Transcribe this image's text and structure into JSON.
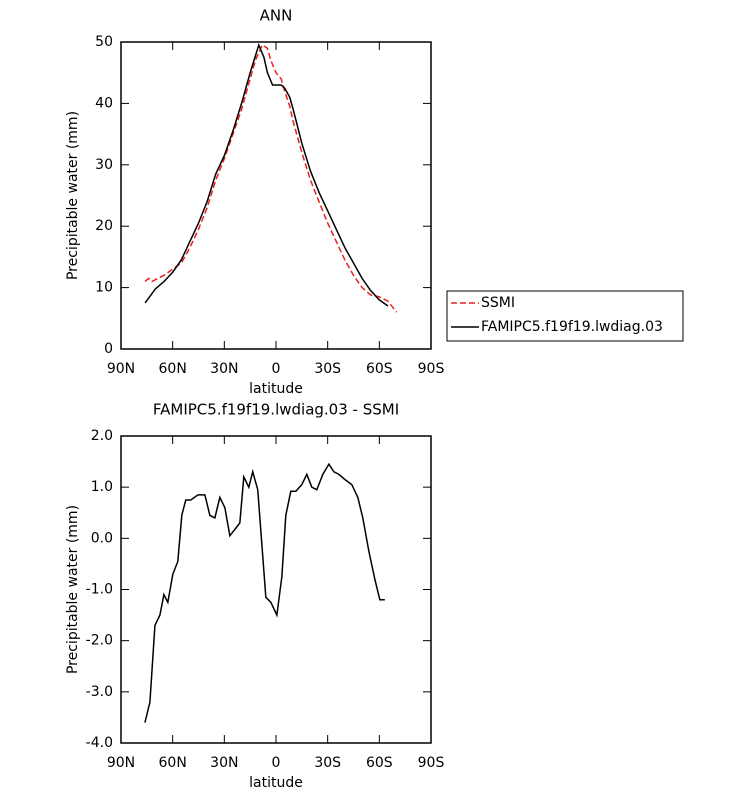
{
  "chart_data": [
    {
      "type": "line",
      "title": "ANN",
      "xlabel": "latitude",
      "ylabel": "Precipitable water (mm)",
      "xlim": [
        90,
        -90
      ],
      "xticks": [
        {
          "value": 90,
          "label": "90N"
        },
        {
          "value": 60,
          "label": "60N"
        },
        {
          "value": 30,
          "label": "30N"
        },
        {
          "value": 0,
          "label": "0"
        },
        {
          "value": -30,
          "label": "30S"
        },
        {
          "value": -60,
          "label": "60S"
        },
        {
          "value": -90,
          "label": "90S"
        }
      ],
      "ylim": [
        0,
        50
      ],
      "yticks": [
        0,
        10,
        20,
        30,
        40,
        50
      ],
      "legend": "right",
      "series": [
        {
          "name": "SSMI",
          "color": "#e8211c",
          "dash": "dashed",
          "x": [
            76,
            74,
            72,
            65,
            60,
            55,
            50,
            45,
            40,
            35,
            30,
            25,
            20,
            15,
            12,
            8,
            5,
            3,
            0,
            -3,
            -5,
            -8,
            -10,
            -15,
            -20,
            -25,
            -30,
            -35,
            -40,
            -45,
            -50,
            -55,
            -60,
            -65,
            -70
          ],
          "values": [
            11,
            11.5,
            11,
            12,
            13,
            14,
            16.5,
            19.5,
            23,
            27.5,
            31,
            35,
            39,
            44,
            47,
            49.5,
            49,
            47,
            45,
            44,
            42,
            39.5,
            37,
            32,
            27.5,
            24,
            20.5,
            17.5,
            14.5,
            12,
            10,
            8.8,
            8.5,
            7.8,
            6
          ]
        },
        {
          "name": "FAMIPC5.f19f19.lwdiag.03",
          "color": "#000000",
          "dash": "solid",
          "x": [
            76,
            70,
            65,
            60,
            55,
            50,
            45,
            40,
            35,
            30,
            25,
            20,
            15,
            10,
            7,
            5,
            2,
            0,
            -3,
            -5,
            -8,
            -10,
            -15,
            -20,
            -25,
            -30,
            -35,
            -40,
            -45,
            -50,
            -55,
            -60,
            -65
          ],
          "values": [
            7.5,
            9.8,
            11,
            12.5,
            14.5,
            17.5,
            20.5,
            24,
            28.5,
            31.5,
            35.5,
            40,
            45,
            49.5,
            47.5,
            45,
            43,
            43,
            43,
            42.5,
            41,
            39,
            33.5,
            29,
            25.5,
            22.5,
            19.5,
            16.5,
            14,
            11.5,
            9.5,
            8,
            7
          ]
        }
      ]
    },
    {
      "type": "line",
      "title": "FAMIPC5.f19f19.lwdiag.03 - SSMI",
      "xlabel": "latitude",
      "ylabel": "Precipitable water (mm)",
      "xlim": [
        90,
        -90
      ],
      "xticks": [
        {
          "value": 90,
          "label": "90N"
        },
        {
          "value": 60,
          "label": "60N"
        },
        {
          "value": 30,
          "label": "30N"
        },
        {
          "value": 0,
          "label": "0"
        },
        {
          "value": -30,
          "label": "30S"
        },
        {
          "value": -60,
          "label": "60S"
        },
        {
          "value": -90,
          "label": "90S"
        }
      ],
      "ylim": [
        -4,
        2
      ],
      "yticks": [
        {
          "value": -4,
          "label": "-4.0"
        },
        {
          "value": -3,
          "label": "-3.0"
        },
        {
          "value": -2,
          "label": "-2.0"
        },
        {
          "value": -1,
          "label": "-1.0"
        },
        {
          "value": 0,
          "label": "0.0"
        },
        {
          "value": 1,
          "label": "1.0"
        },
        {
          "value": 2,
          "label": "2.0"
        }
      ],
      "color": "#000000",
      "x": [
        76.1,
        73.2,
        70.3,
        67.4,
        65.1,
        62.8,
        59.9,
        57.0,
        54.7,
        52.4,
        49.5,
        45.3,
        41.3,
        38.4,
        35.5,
        32.6,
        29.7,
        26.8,
        23.3,
        21.0,
        18.7,
        15.8,
        13.5,
        10.6,
        5.9,
        3.0,
        -0.5,
        -3.4,
        -5.7,
        -8.6,
        -11.5,
        -15.0,
        -17.9,
        -20.8,
        -23.7,
        -27.2,
        -30.7,
        -33.6,
        -36.5,
        -40.0,
        -44.0,
        -47.5,
        -50.4,
        -53.9,
        -57.4,
        -60.3,
        -63.2
      ],
      "values": [
        -3.6,
        -3.2,
        -1.7,
        -1.5,
        -1.1,
        -1.25,
        -0.7,
        -0.45,
        0.45,
        0.75,
        0.75,
        0.85,
        0.85,
        0.45,
        0.4,
        0.8,
        0.6,
        0.05,
        0.2,
        0.3,
        1.2,
        1.0,
        1.3,
        0.95,
        -1.15,
        -1.25,
        -1.5,
        -0.75,
        0.45,
        0.92,
        0.92,
        1.05,
        1.25,
        1.0,
        0.95,
        1.25,
        1.45,
        1.3,
        1.25,
        1.15,
        1.05,
        0.8,
        0.4,
        -0.25,
        -0.8,
        -1.2,
        -1.2
      ]
    }
  ]
}
